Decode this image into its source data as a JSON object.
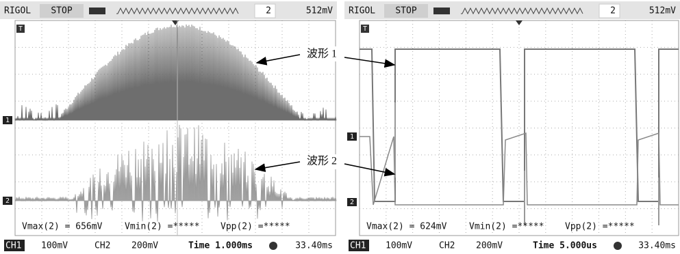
{
  "panels": [
    {
      "header": {
        "brand": "RIGOL",
        "status": "STOP",
        "trigger_channel": "2",
        "trigger_level": "512mV"
      },
      "screen": {
        "trigger_marker": "T",
        "ch1_marker": "1",
        "ch2_marker": "2"
      },
      "measurements": [
        "Vmax(2) = 656mV",
        "Vmin(2) =*****",
        "Vpp(2) =*****"
      ],
      "footer": {
        "ch1_label": "CH1",
        "ch1_scale": "100mV",
        "ch2_label": "CH2",
        "ch2_scale": "200mV",
        "time": "Time 1.000ms",
        "offset": "33.40ms"
      }
    },
    {
      "header": {
        "brand": "RIGOL",
        "status": "STOP",
        "trigger_channel": "2",
        "trigger_level": "512mV"
      },
      "screen": {
        "trigger_marker": "T",
        "ch1_marker": "1",
        "ch2_marker": "2"
      },
      "measurements": [
        "Vmax(2) = 624mV",
        "Vmin(2) =*****",
        "Vpp(2) =*****"
      ],
      "footer": {
        "ch1_label": "CH1",
        "ch1_scale": "100mV",
        "ch2_label": "CH2",
        "ch2_scale": "200mV",
        "time": "Time 5.000us",
        "offset": "33.40ms"
      }
    }
  ],
  "annotations": [
    "波形 1",
    "波形 2"
  ]
}
